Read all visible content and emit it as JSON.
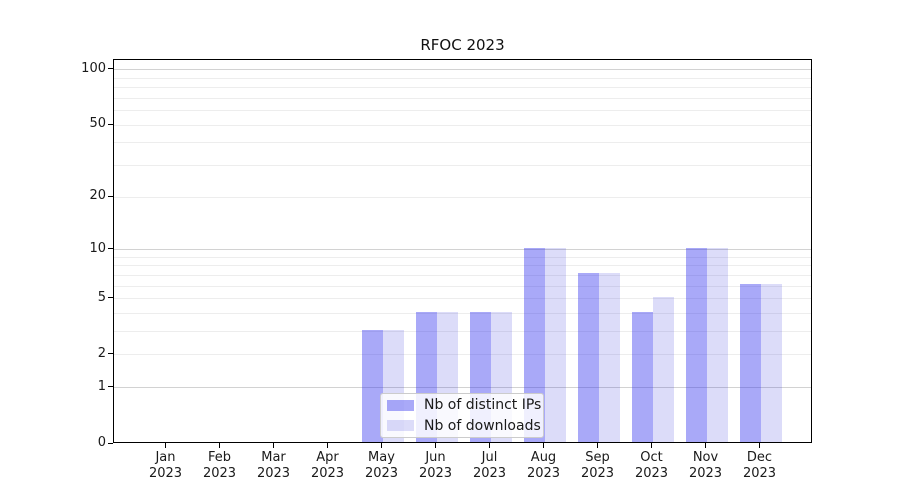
{
  "title": "RFOC 2023",
  "chart_data": {
    "type": "bar",
    "title": "RFOC 2023",
    "categories": [
      "Jan 2023",
      "Feb 2023",
      "Mar 2023",
      "Apr 2023",
      "May 2023",
      "Jun 2023",
      "Jul 2023",
      "Aug 2023",
      "Sep 2023",
      "Oct 2023",
      "Nov 2023",
      "Dec 2023"
    ],
    "series": [
      {
        "name": "Nb of distinct IPs",
        "color": "rgba(50,50,238,0.42)",
        "values": [
          0,
          0,
          0,
          0,
          3,
          4,
          4,
          10,
          7,
          4,
          10,
          6
        ]
      },
      {
        "name": "Nb of downloads",
        "color": "rgba(36,36,218,0.16)",
        "values": [
          0,
          0,
          0,
          0,
          3,
          4,
          4,
          10,
          7,
          5,
          10,
          6
        ]
      }
    ],
    "y_scale": "log1p",
    "y_ticks": [
      0,
      1,
      2,
      5,
      10,
      20,
      50,
      100
    ],
    "y_minor_gridlines": [
      2,
      3,
      4,
      5,
      6,
      7,
      8,
      9,
      20,
      30,
      40,
      50,
      60,
      70,
      80,
      90
    ],
    "y_major_gridlines": [
      1,
      10,
      100
    ],
    "ylim": [
      0,
      113
    ],
    "grid": "on",
    "legend_position": "lower center",
    "axis_color": "#000000",
    "major_grid_color": "#d2d2d2",
    "minor_grid_color": "#ededed"
  }
}
